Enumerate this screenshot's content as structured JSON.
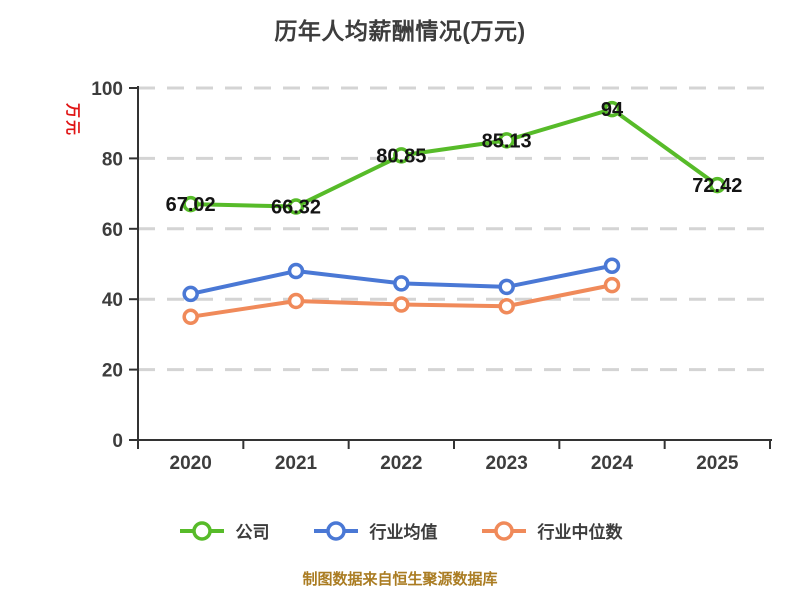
{
  "page": {
    "background": "#ffffff"
  },
  "chart_data": {
    "type": "line",
    "title": "历年人均薪酬情况(万元)",
    "ylabel": "万元",
    "x_categories": [
      "2020",
      "2021",
      "2022",
      "2023",
      "2024",
      "2025"
    ],
    "y_ticks": [
      0,
      20,
      40,
      60,
      80,
      100
    ],
    "ylim": [
      0,
      100
    ],
    "grid": "horizontal-dashed",
    "legend_position": "bottom",
    "series": [
      {
        "name": "公司",
        "color": "#57bb29",
        "values": [
          67.02,
          66.32,
          80.85,
          85.13,
          94,
          72.42
        ],
        "point_labels": [
          "67.02",
          "66.32",
          "80.85",
          "85.13",
          "94",
          "72.42"
        ],
        "show_labels": true
      },
      {
        "name": "行业均值",
        "color": "#4a78d5",
        "values": [
          41.5,
          48,
          44.5,
          43.5,
          49.5
        ],
        "point_labels": [],
        "show_labels": false
      },
      {
        "name": "行业中位数",
        "color": "#f08a5a",
        "values": [
          35,
          39.5,
          38.5,
          38,
          44
        ],
        "point_labels": [],
        "show_labels": false
      }
    ]
  },
  "footer": {
    "text": "制图数据来自恒生聚源数据库"
  },
  "style_colors": {
    "axis_line": "#333333",
    "grid_line": "#d4d4d4",
    "tick_label": "#3d3d3d",
    "data_label": "#141414",
    "ylabel_red": "#e01414",
    "footer_gold": "#aa7c22"
  }
}
